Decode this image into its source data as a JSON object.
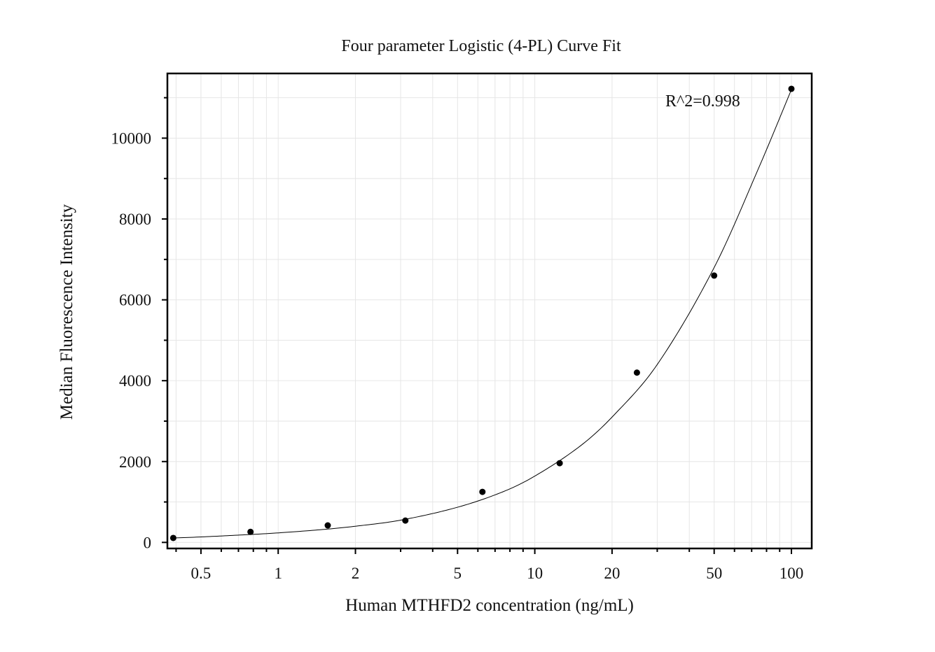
{
  "chart_data": {
    "type": "scatter",
    "title": "Four parameter Logistic (4-PL) Curve Fit",
    "xlabel": "Human MTHFD2 concentration (ng/mL)",
    "ylabel": "Median Fluorescence Intensity",
    "xscale": "log",
    "xlim": [
      0.37,
      120
    ],
    "ylim": [
      -150,
      11600
    ],
    "grid": true,
    "x_ticks": [
      0.5,
      1,
      2,
      5,
      10,
      20,
      50,
      100
    ],
    "x_tick_labels": [
      "0.5",
      "1",
      "2",
      "5",
      "10",
      "20",
      "50",
      "100"
    ],
    "y_ticks": [
      0,
      2000,
      4000,
      6000,
      8000,
      10000
    ],
    "y_tick_labels": [
      "0",
      "2000",
      "4000",
      "6000",
      "8000",
      "10000"
    ],
    "annotation": "R^2=0.998",
    "points": {
      "x": [
        0.39,
        0.78,
        1.56,
        3.13,
        6.25,
        12.5,
        25,
        50,
        100
      ],
      "y": [
        110,
        260,
        420,
        540,
        1250,
        1960,
        4200,
        6600,
        11220
      ]
    },
    "fit_curve": {
      "x": [
        0.39,
        0.5,
        0.75,
        1,
        1.5,
        2,
        3,
        5,
        7.5,
        10,
        15,
        20,
        30,
        50,
        75,
        100
      ],
      "y": [
        110,
        135,
        190,
        235,
        320,
        400,
        550,
        870,
        1250,
        1640,
        2380,
        3100,
        4400,
        6800,
        9300,
        11200
      ]
    }
  }
}
